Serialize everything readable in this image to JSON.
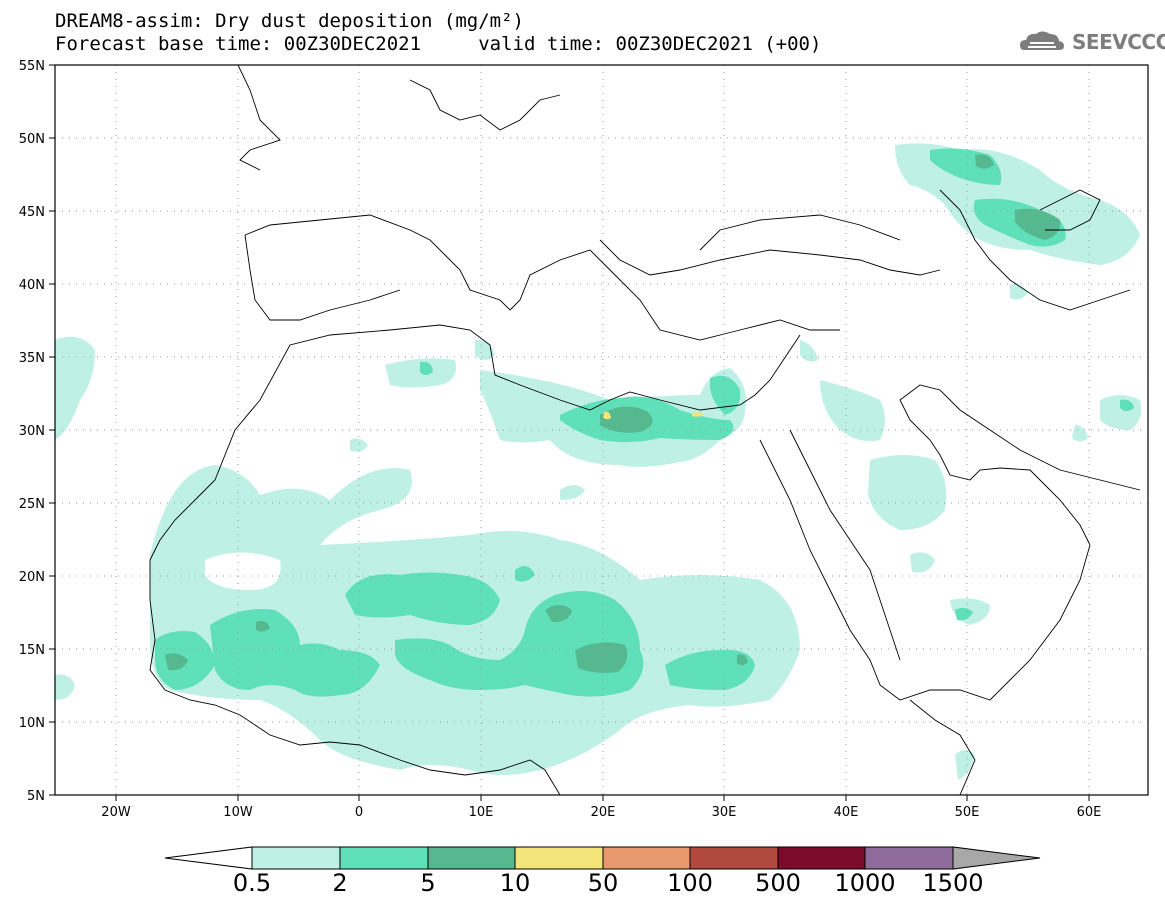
{
  "header": {
    "title_line1": "DREAM8-assim: Dry dust deposition (mg/m²)",
    "title_line2": "Forecast base time: 00Z30DEC2021     valid time: 00Z30DEC2021 (+00)"
  },
  "logo": {
    "text": "SEEVCCC",
    "icon": "cloud-icon"
  },
  "map": {
    "lon_range": [
      -25,
      65
    ],
    "lat_range": [
      5,
      55
    ],
    "lat_ticks": [
      "55N",
      "50N",
      "45N",
      "40N",
      "35N",
      "30N",
      "25N",
      "20N",
      "15N",
      "10N",
      "5N"
    ],
    "lon_ticks": [
      "20W",
      "10W",
      "0",
      "10E",
      "20E",
      "30E",
      "40E",
      "50E",
      "60E"
    ],
    "gridlines": "dotted"
  },
  "colorbar": {
    "labels": [
      "0.5",
      "2",
      "5",
      "10",
      "50",
      "100",
      "500",
      "1000",
      "1500"
    ],
    "colors": [
      "#ffffff",
      "#bff0e6",
      "#5fe0b9",
      "#55b88f",
      "#f5e47a",
      "#e89a6e",
      "#b04a3f",
      "#7a0b2a",
      "#8e6b9a",
      "#a8a8a8"
    ]
  }
}
